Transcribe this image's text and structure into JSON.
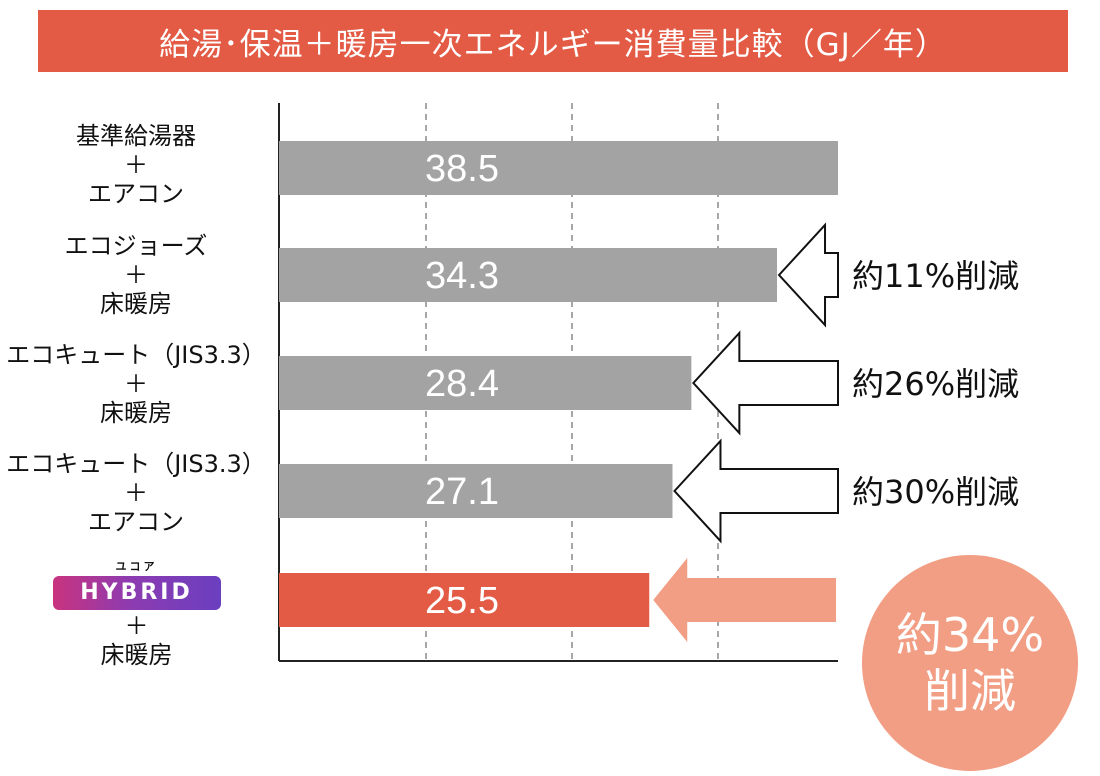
{
  "title": "給湯･保温＋暖房一次エネルギー消費量比較（GJ／年）",
  "colors": {
    "banner": "#e35a45",
    "gray_bar": "#a3a3a3",
    "highlight_bar": "#e35a45",
    "arrow_fill_highlight": "#f29e84",
    "badge": "#f29e84"
  },
  "chart_data": {
    "type": "bar",
    "orientation": "horizontal",
    "categories": [
      {
        "lines": [
          "基準給湯器",
          "＋",
          "エアコン"
        ]
      },
      {
        "lines": [
          "エコジョーズ",
          "＋",
          "床暖房"
        ]
      },
      {
        "lines": [
          "エコキュート（JIS3.3）",
          "＋",
          "床暖房"
        ]
      },
      {
        "lines": [
          "エコキュート（JIS3.3）",
          "＋",
          "エアコン"
        ]
      },
      {
        "brand_small": "ユコア",
        "brand_logo": "HYBRID",
        "lines": [
          "＋",
          "床暖房"
        ]
      }
    ],
    "values": [
      38.5,
      34.3,
      28.4,
      27.1,
      25.5
    ],
    "value_labels": [
      "38.5",
      "34.3",
      "28.4",
      "27.1",
      "25.5"
    ],
    "highlight_index": 4,
    "xlim": [
      0,
      38.5
    ],
    "grid": "dashed vertical",
    "reductions": [
      {
        "bar_index": 1,
        "label": "約11%削減"
      },
      {
        "bar_index": 2,
        "label": "約26%削減"
      },
      {
        "bar_index": 3,
        "label": "約30%削減"
      }
    ],
    "highlight_reduction": {
      "line1": "約34%",
      "line2": "削減"
    }
  }
}
